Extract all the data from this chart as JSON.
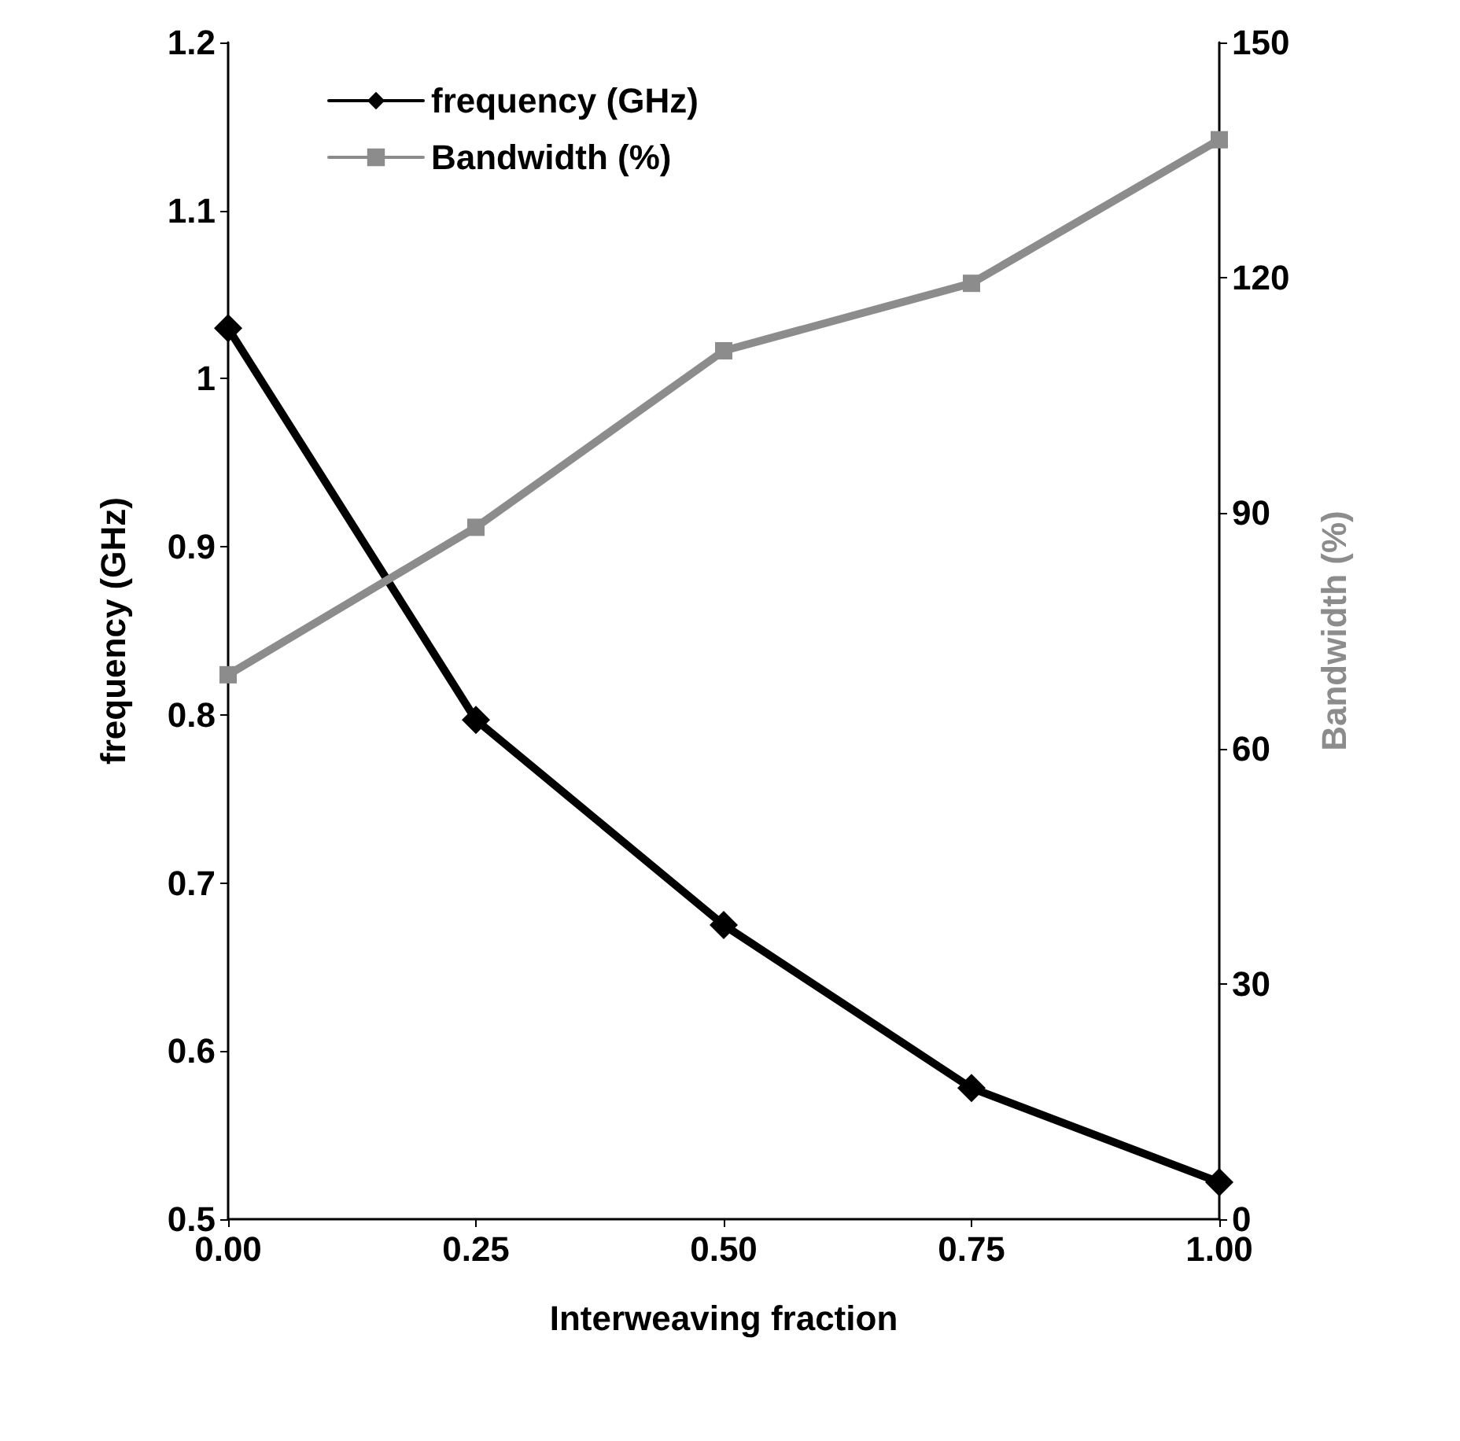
{
  "chart_data": {
    "type": "line",
    "xlabel": "Interweaving fraction",
    "ylabel": "frequency (GHz)",
    "y2label": "Bandwidth (%)",
    "x": [
      0,
      0.25,
      0.5,
      0.75,
      1
    ],
    "xlim": [
      0,
      1
    ],
    "xticks": [
      {
        "value": 0,
        "label": "0.00"
      },
      {
        "value": 0.25,
        "label": "0.25"
      },
      {
        "value": 0.5,
        "label": "0.50"
      },
      {
        "value": 0.75,
        "label": "0.75"
      },
      {
        "value": 1,
        "label": "1.00"
      }
    ],
    "ylim": [
      0.5,
      1.2
    ],
    "yticks": [
      0.5,
      0.6,
      0.7,
      0.8,
      0.9,
      1,
      1.1,
      1.2
    ],
    "y2lim": [
      0,
      150
    ],
    "y2ticks": [
      0,
      30,
      60,
      90,
      120,
      150
    ],
    "grid": false,
    "legend": "top left",
    "line_style": "solid",
    "series": [
      {
        "name": "frequency (GHz)",
        "color": "#000000",
        "marker": "diamond",
        "values": [
          1.03,
          0.797,
          0.675,
          0.578,
          0.522
        ]
      },
      {
        "name": "Bandwidth (%)",
        "color": "#8c8c8c",
        "marker": "square",
        "axis": "y2",
        "values": [
          69.4,
          88.2,
          110.7,
          119.3,
          137.6
        ]
      }
    ]
  }
}
